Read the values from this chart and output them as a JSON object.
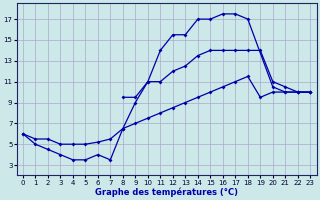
{
  "title": "Graphe des températures (°C)",
  "bg_color": "#cce8e8",
  "grid_color": "#aaaacc",
  "line_color": "#0000aa",
  "xlim": [
    -0.5,
    23.5
  ],
  "ylim": [
    2,
    18.5
  ],
  "xticks": [
    0,
    1,
    2,
    3,
    4,
    5,
    6,
    7,
    8,
    9,
    10,
    11,
    12,
    13,
    14,
    15,
    16,
    17,
    18,
    19,
    20,
    21,
    22,
    23
  ],
  "yticks": [
    3,
    5,
    7,
    9,
    11,
    13,
    15,
    17
  ],
  "line1_x": [
    0,
    1,
    2,
    3,
    4,
    5,
    6,
    7,
    8,
    9,
    10,
    11,
    12,
    13,
    14,
    15,
    16,
    17,
    18,
    20,
    21,
    22,
    23
  ],
  "line1_y": [
    6,
    5,
    4.5,
    4,
    3.5,
    3.5,
    4,
    3.5,
    6.5,
    9,
    11,
    14,
    15.5,
    15.5,
    17,
    17,
    17.5,
    17.5,
    17,
    10.5,
    10,
    10,
    10
  ],
  "line2_x": [
    8,
    9,
    10,
    11,
    12,
    13,
    14,
    15,
    16,
    17,
    18,
    19,
    20,
    21,
    22,
    23
  ],
  "line2_y": [
    9.5,
    9.5,
    11,
    11,
    12,
    12.5,
    13.5,
    14,
    14,
    14,
    14,
    14,
    11,
    10.5,
    10,
    10
  ],
  "line3_x": [
    0,
    1,
    2,
    3,
    4,
    5,
    6,
    7,
    8,
    9,
    10,
    11,
    12,
    13,
    14,
    15,
    16,
    17,
    18,
    19,
    20,
    21,
    22,
    23
  ],
  "line3_y": [
    6,
    5.5,
    5.5,
    5,
    5,
    5,
    5.2,
    5.5,
    6.5,
    7,
    7.5,
    8,
    8.5,
    9,
    9.5,
    10,
    10.5,
    11,
    11.5,
    9.5,
    10,
    10,
    10,
    10
  ]
}
